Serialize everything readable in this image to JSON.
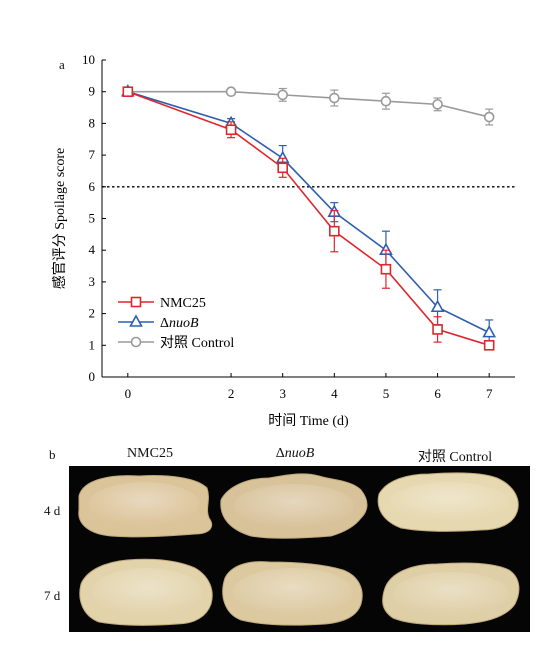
{
  "chart_data": {
    "type": "line",
    "panel_label": "a",
    "xlabel": "时间 Time (d)",
    "ylabel": "感官评分 Spoilage score",
    "x": [
      0,
      2,
      3,
      4,
      5,
      6,
      7
    ],
    "x_tick_labels": [
      "0",
      "2",
      "3",
      "4",
      "5",
      "6",
      "7"
    ],
    "ylim": [
      0,
      10
    ],
    "y_ticks": [
      0,
      1,
      2,
      3,
      4,
      5,
      6,
      7,
      8,
      9,
      10
    ],
    "threshold": 6,
    "legend_position": "bottom-left",
    "grid": false,
    "series": [
      {
        "name": "NMC25",
        "name_parts": [
          {
            "text": "NMC25",
            "italic": false
          }
        ],
        "marker": "square",
        "color": "#e0262d",
        "values": [
          9.0,
          7.8,
          6.6,
          4.6,
          3.4,
          1.5,
          1.0
        ],
        "errors": [
          0.0,
          0.25,
          0.3,
          0.65,
          0.6,
          0.4,
          0.1
        ]
      },
      {
        "name": "ΔnuoB",
        "name_parts": [
          {
            "text": "Δ",
            "italic": false
          },
          {
            "text": "nuoB",
            "italic": true
          }
        ],
        "marker": "triangle",
        "color": "#2e5fae",
        "values": [
          9.0,
          8.0,
          6.9,
          5.2,
          4.0,
          2.2,
          1.4
        ],
        "errors": [
          0.0,
          0.15,
          0.4,
          0.3,
          0.6,
          0.55,
          0.4
        ]
      },
      {
        "name": "对照 Control",
        "name_parts": [
          {
            "text": "对照 Control",
            "italic": false
          }
        ],
        "marker": "circle",
        "color": "#9a9a9a",
        "values": [
          9.0,
          9.0,
          8.9,
          8.8,
          8.7,
          8.6,
          8.2
        ],
        "errors": [
          0.0,
          0.0,
          0.2,
          0.25,
          0.25,
          0.2,
          0.25
        ]
      }
    ]
  },
  "photo_panel": {
    "panel_label": "b",
    "columns": [
      {
        "parts": [
          {
            "text": "NMC25",
            "italic": false
          }
        ]
      },
      {
        "parts": [
          {
            "text": "Δ",
            "italic": false
          },
          {
            "text": "nuoB",
            "italic": true
          }
        ]
      },
      {
        "parts": [
          {
            "text": "对照 Control",
            "italic": false
          }
        ]
      }
    ],
    "rows": [
      "4 d",
      "7 d"
    ],
    "background_color": "#050505",
    "sample_colors": {
      "4 d": [
        "#dcc49a",
        "#d8c29a",
        "#e6d8b0"
      ],
      "7 d": [
        "#e2d3ab",
        "#dcc9a0",
        "#dfcfa6"
      ]
    }
  }
}
